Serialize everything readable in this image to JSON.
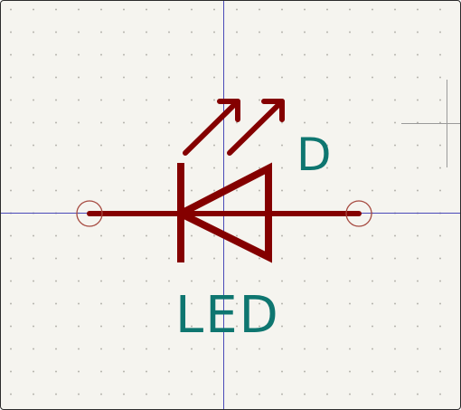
{
  "editor": {
    "symbol": {
      "reference": "D",
      "value": "LED",
      "type": "LED (light-emitting diode)",
      "pin_count": 2
    }
  },
  "colors": {
    "background": "#f5f4ef",
    "grid_dot": "#b9b7b1",
    "symbol_body": "#840000",
    "pin_end": "#a64a40",
    "text": "#0e7670",
    "axis_lines": "#4a4ab8",
    "cursor": "#9a9a9a"
  },
  "icons": {
    "arrows": "light-emission-arrows",
    "diode": "diode-triangle",
    "pins": "pin-connection-circle",
    "cursor": "crosshair-cursor"
  }
}
